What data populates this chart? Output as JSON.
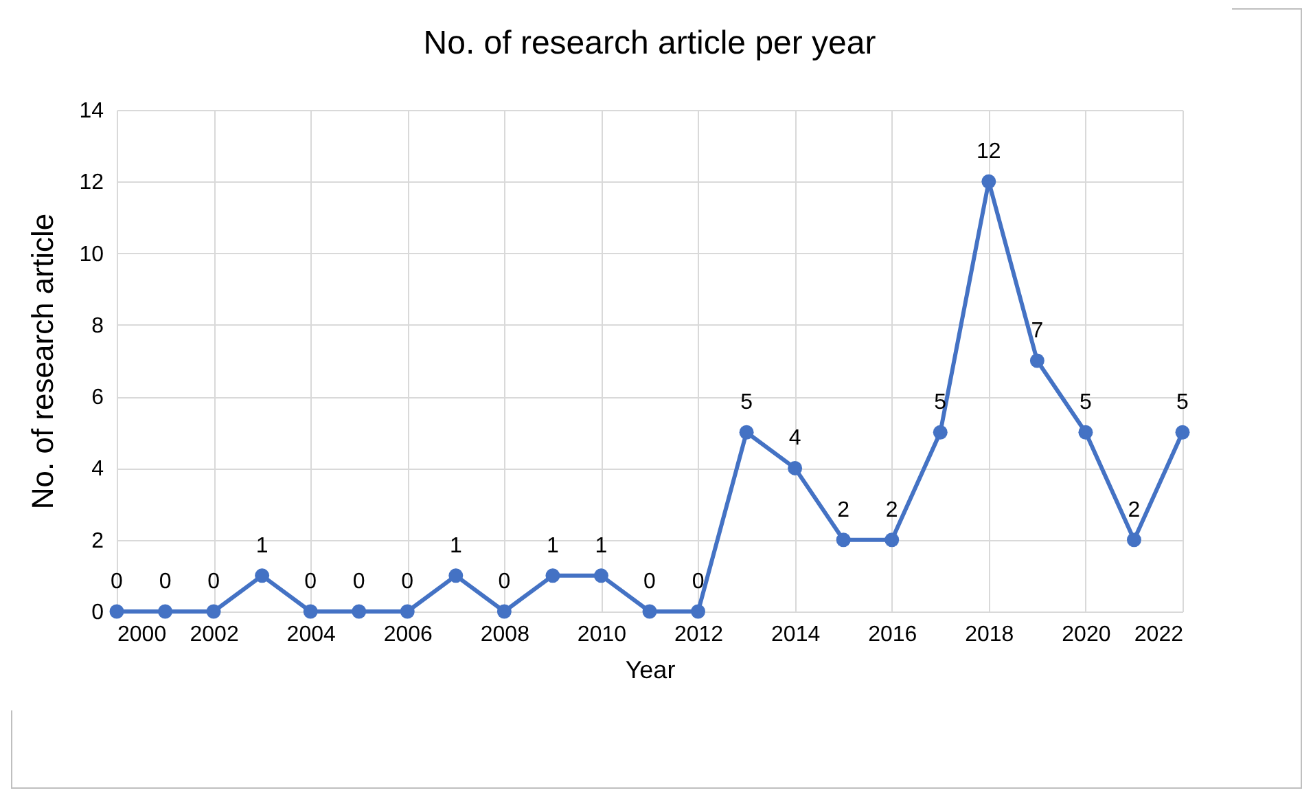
{
  "chart_data": {
    "type": "line",
    "title": "No. of research article per year",
    "xlabel": "Year",
    "ylabel": "No. of research article",
    "x": [
      2000,
      2001,
      2002,
      2003,
      2004,
      2005,
      2006,
      2007,
      2008,
      2009,
      2010,
      2011,
      2012,
      2013,
      2014,
      2015,
      2016,
      2017,
      2018,
      2019,
      2020,
      2021,
      2022
    ],
    "series": [
      {
        "color": "#4472c4",
        "values": [
          0,
          0,
          0,
          1,
          0,
          0,
          0,
          1,
          0,
          1,
          1,
          0,
          0,
          5,
          4,
          2,
          2,
          5,
          12,
          7,
          5,
          2,
          5
        ]
      }
    ],
    "xlim": [
      2000,
      2022
    ],
    "xticks": [
      2000,
      2002,
      2004,
      2006,
      2008,
      2010,
      2012,
      2014,
      2016,
      2018,
      2020,
      2022
    ],
    "ylim": [
      0,
      14
    ],
    "yticks": [
      0,
      2,
      4,
      6,
      8,
      10,
      12,
      14
    ],
    "grid": true,
    "marker": "circle",
    "line_style": "solid",
    "data_labels": true
  }
}
